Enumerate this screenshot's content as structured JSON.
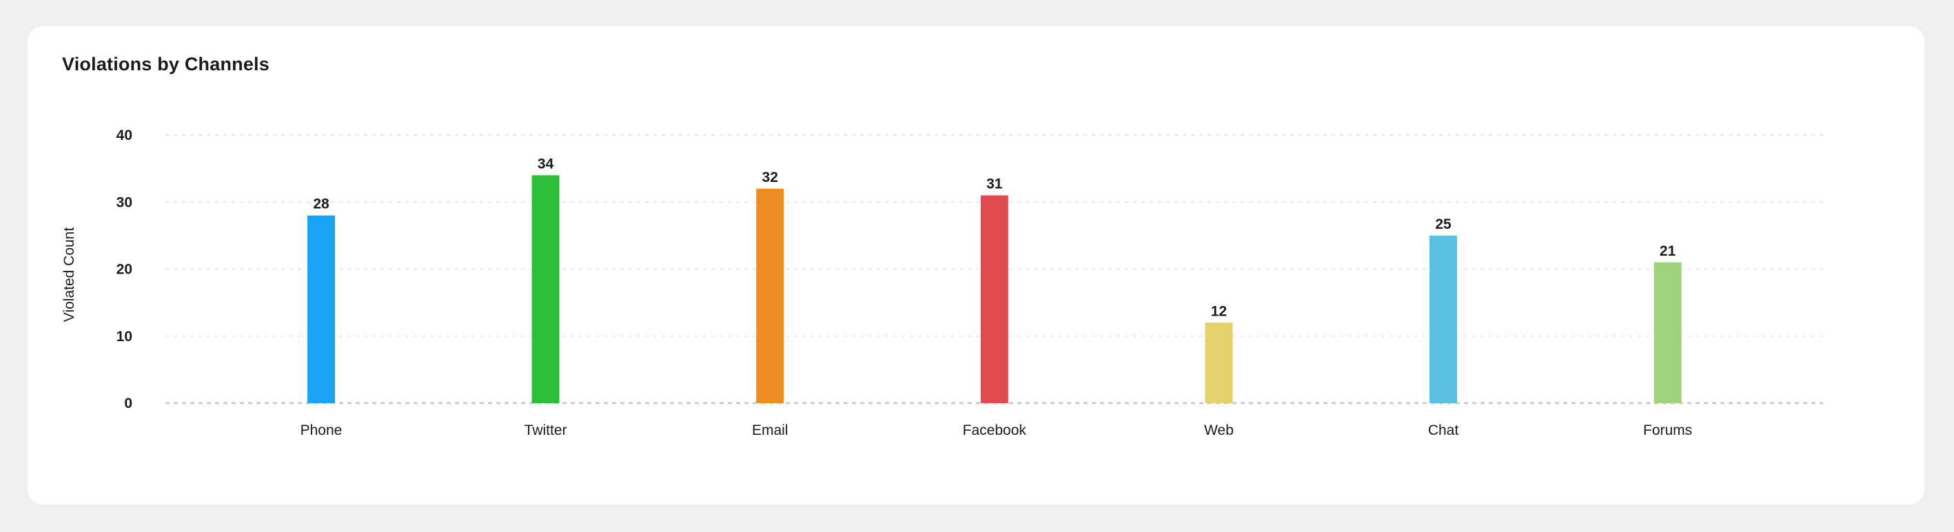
{
  "chart_data": {
    "type": "bar",
    "title": "Violations by Channels",
    "xlabel": "",
    "ylabel": "Violated Count",
    "categories": [
      "Phone",
      "Twitter",
      "Email",
      "Facebook",
      "Web",
      "Chat",
      "Forums"
    ],
    "values": [
      28,
      34,
      32,
      31,
      12,
      25,
      21
    ],
    "colors": [
      "#1aa3f5",
      "#2cbd39",
      "#ec8c22",
      "#e04b4d",
      "#e3d16c",
      "#59c0e3",
      "#9fd27c"
    ],
    "ylim": [
      0,
      40
    ],
    "yticks": [
      0,
      10,
      20,
      30,
      40
    ],
    "grid": true,
    "show_data_labels": true
  }
}
